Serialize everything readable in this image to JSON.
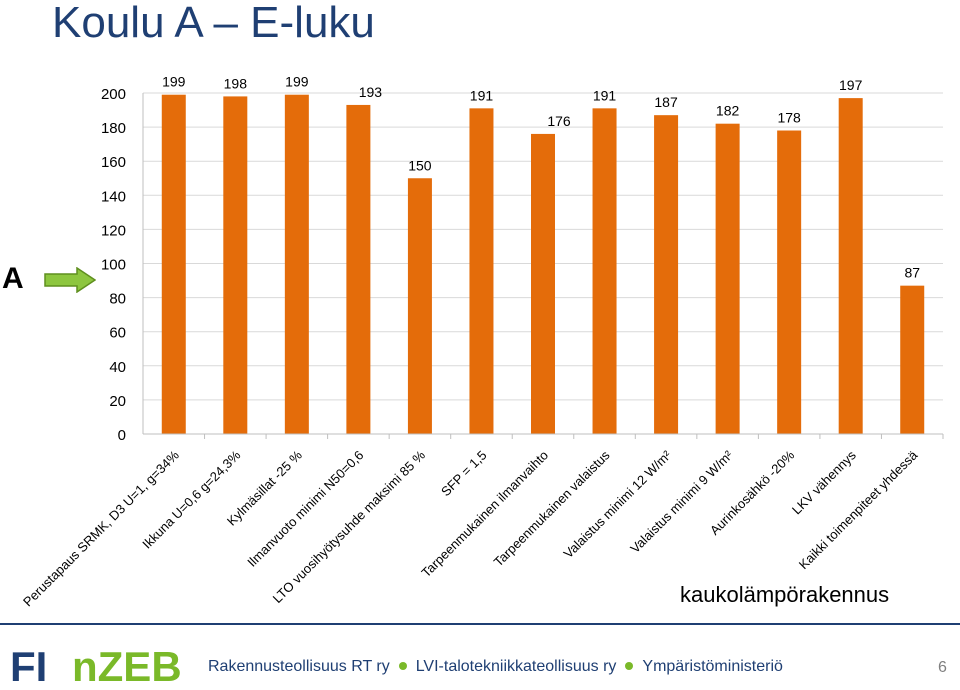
{
  "title": "Koulu A – E-luku",
  "side_label": "A",
  "arrow_icon": "right-arrow-icon",
  "note": "kaukolämpörakennus",
  "footer": {
    "logo_part1": "FI",
    "logo_part2": "nZEB",
    "organizations": [
      "Rakennusteollisuus RT ry",
      "LVI-talotekniikkateollisuus ry",
      "Ympäristöministeriö"
    ],
    "page_number": "6"
  },
  "colors": {
    "bar": "#e46c0a",
    "title": "#1f3f73",
    "arrow": "#8dc63f",
    "accent": "#7ab929"
  },
  "chart_data": {
    "type": "bar",
    "categories": [
      "Perustapaus SRMK, D3 U=1, g=34%",
      "Ikkuna U=0,6 g=24,3%",
      "Kylmäsillat -25 %",
      "Ilmanvuoto minimi N50=0,6",
      "LTO vuosihyötysuhde maksimi 85 %",
      "SFP = 1,5",
      "Tarpeenmukainen ilmanvaihto",
      "Tarpeenmukainen valaistus",
      "Valaistus minimi 12 W/m²",
      "Valaistus minimi 9 W/m²",
      "Aurinkosähkö -20%",
      "LKV vähennys",
      "Kaikki toimenpiteet yhdessä"
    ],
    "values": [
      199,
      198,
      199,
      193,
      150,
      191,
      176,
      191,
      187,
      182,
      178,
      197,
      87
    ],
    "ylim": [
      0,
      200
    ],
    "yticks": [
      0,
      20,
      40,
      60,
      80,
      100,
      120,
      140,
      160,
      180,
      200
    ],
    "grid": true,
    "legend": "none"
  }
}
